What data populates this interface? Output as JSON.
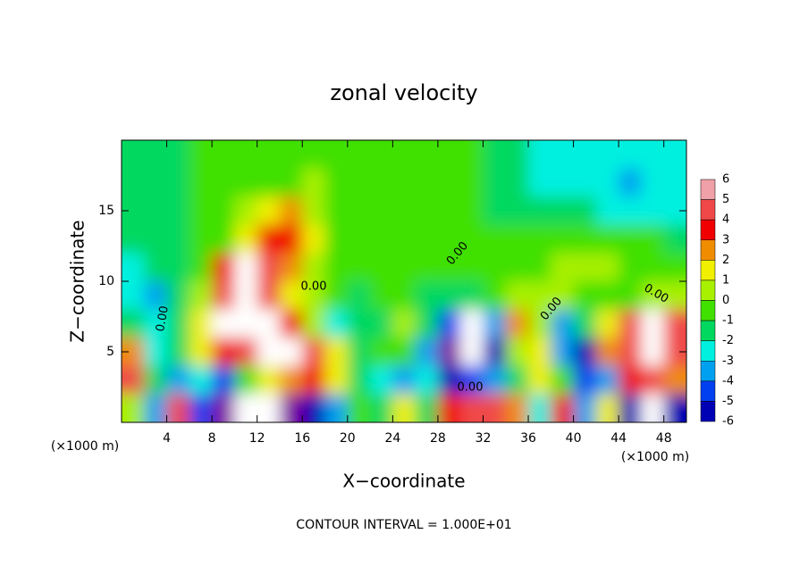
{
  "chart_data": {
    "type": "heatmap",
    "title": "zonal velocity",
    "xlabel": "X−coordinate",
    "ylabel": "Z−coordinate",
    "x_unit_label": "(×1000 m)",
    "annotation": "CONTOUR INTERVAL = 1.000E+01",
    "contour_labels": [
      "0.00",
      "0.00",
      "0.00",
      "0.00",
      "0.00",
      "0.00"
    ],
    "xlim": [
      0,
      50
    ],
    "ylim": [
      0,
      20
    ],
    "xticks": [
      4,
      8,
      12,
      16,
      20,
      24,
      28,
      32,
      36,
      40,
      44,
      48
    ],
    "yticks": [
      5,
      10,
      15
    ],
    "x": [
      1,
      3,
      5,
      7,
      9,
      11,
      13,
      15,
      17,
      19,
      21,
      23,
      25,
      27,
      29,
      31,
      33,
      35,
      37,
      39,
      41,
      43,
      45,
      47,
      49
    ],
    "y": [
      19,
      17,
      15,
      13,
      11,
      9,
      7,
      5,
      3,
      1
    ],
    "z": [
      [
        -0.5,
        -0.5,
        -0.3,
        0,
        0,
        0.2,
        0.3,
        0.5,
        0.5,
        0.5,
        0.5,
        0.3,
        0.2,
        0.2,
        0.2,
        0.2,
        -0.8,
        -1,
        -1.2,
        -1.5,
        -1.5,
        -1.8,
        -1.5,
        -1.8,
        -1.5
      ],
      [
        -0.8,
        -0.6,
        -0.3,
        0,
        0.2,
        0.3,
        0.5,
        0.8,
        1,
        0.5,
        0.5,
        0.5,
        0.3,
        0.2,
        0.2,
        0,
        -1,
        -1,
        -1.2,
        -1.5,
        -1.5,
        -2,
        -2.3,
        -2,
        -1.8
      ],
      [
        -1,
        -0.8,
        -0.5,
        0,
        0.2,
        1,
        2,
        3,
        1.5,
        0.7,
        0.5,
        0.5,
        0.5,
        0.3,
        0.2,
        0,
        -0.5,
        -0.8,
        -1,
        -1,
        -1,
        -1.5,
        -1.8,
        -1.8,
        -1.5
      ],
      [
        -1,
        -1,
        -0.5,
        0,
        0.5,
        2,
        4.5,
        4,
        2,
        0.8,
        0.5,
        0.5,
        0.3,
        0.3,
        0.3,
        0.3,
        0,
        0,
        0.3,
        0.5,
        0.5,
        0.8,
        0.5,
        0,
        -0.5
      ],
      [
        -1.5,
        -1,
        -0.5,
        0.5,
        4,
        6.5,
        5,
        3,
        1.5,
        0.5,
        0.3,
        0.5,
        0.5,
        0.3,
        0.2,
        0.2,
        0.2,
        0.2,
        0.5,
        1,
        1.5,
        1,
        0.5,
        0.5,
        0
      ],
      [
        -2,
        -2.5,
        -1,
        1,
        6,
        8,
        5,
        2.5,
        1,
        0,
        -0.5,
        0,
        0.3,
        -0.3,
        -1,
        -0.5,
        0,
        1,
        1.5,
        1,
        0.5,
        0.3,
        0.5,
        1,
        1.5
      ],
      [
        -1,
        -2,
        -1,
        2,
        7,
        9,
        7,
        4,
        1,
        -2,
        -1,
        -0.5,
        1,
        -1,
        -4,
        -7,
        -3,
        3,
        1,
        -3,
        -1,
        2,
        5,
        7,
        5
      ],
      [
        3,
        -2,
        -1,
        2,
        4,
        6,
        7,
        7,
        5,
        2,
        -1,
        0,
        0.5,
        -3,
        -6,
        -8,
        -5,
        1,
        2,
        -3,
        -5,
        3,
        6,
        8,
        5
      ],
      [
        5,
        -1,
        -3,
        -2,
        -4,
        0,
        2,
        3,
        4,
        2,
        -1,
        -2,
        -3,
        -2,
        -5,
        -4,
        -3,
        -1,
        2,
        0,
        -4,
        -3,
        4,
        5,
        3
      ],
      [
        1,
        -3,
        5,
        -4,
        -6,
        -7,
        -7,
        -6,
        -5,
        -3,
        0,
        -1,
        2,
        -1,
        4,
        5,
        6,
        3,
        -2,
        4,
        -3,
        2,
        -5,
        -7,
        -5
      ]
    ],
    "colorbar_ticks": [
      6,
      5,
      4,
      3,
      2,
      1,
      0,
      -1,
      -2,
      -3,
      -4,
      -5,
      -6
    ],
    "colors": [
      "#f0a0a8",
      "#f04848",
      "#f00000",
      "#f08c00",
      "#f0f000",
      "#a8f000",
      "#40e000",
      "#00d860",
      "#00f0e0",
      "#00a0f0",
      "#0040f0",
      "#0000b4",
      "#8000a0"
    ],
    "out_of_range_color": "#ffffff"
  }
}
